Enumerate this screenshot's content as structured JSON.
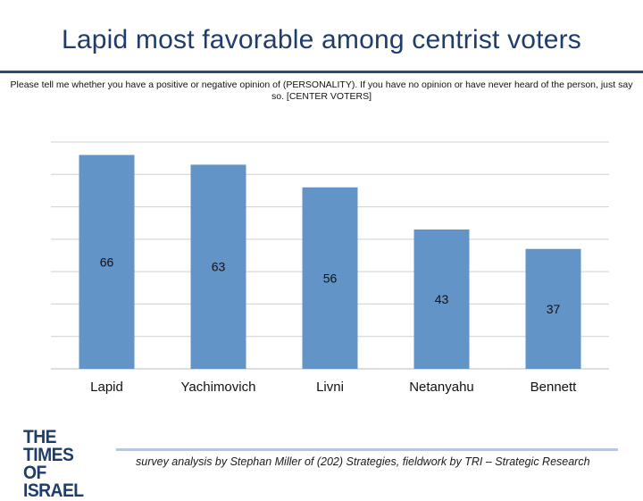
{
  "title": "Lapid most favorable among centrist voters",
  "subtitle": "Please tell me whether you have a positive or negative opinion of (PERSONALITY). If you have no opinion or have never heard of the person, just say so. [CENTER VOTERS]",
  "logo": {
    "line1": "THE TIMES",
    "line2": "OF ISRAEL"
  },
  "credit": "survey analysis by Stephan Miller of (202) Strategies, fieldwork by TRI – Strategic Research",
  "colors": {
    "bar": "#6394c8",
    "title": "#1f3d6b",
    "grid": "#d0d0d0"
  },
  "chart_data": {
    "type": "bar",
    "categories": [
      "Lapid",
      "Yachimovich",
      "Livni",
      "Netanyahu",
      "Bennett"
    ],
    "values": [
      66,
      63,
      56,
      43,
      37
    ],
    "data_labels": [
      "66",
      "63",
      "56",
      "43",
      "37"
    ],
    "title": "Lapid most favorable among centrist voters",
    "xlabel": "",
    "ylabel": "",
    "ylim": [
      0,
      70
    ],
    "grid": true,
    "legend": "none"
  }
}
